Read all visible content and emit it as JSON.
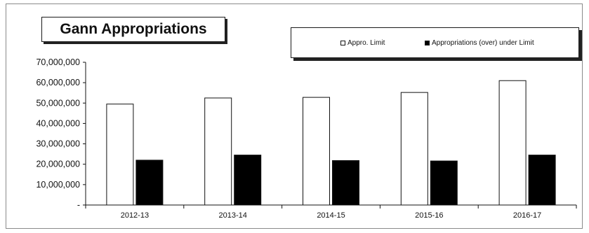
{
  "chart_data": {
    "type": "bar",
    "title": "Gann Appropriations",
    "categories": [
      "2012-13",
      "2013-14",
      "2014-15",
      "2015-16",
      "2016-17"
    ],
    "series": [
      {
        "name": "Appro. Limit",
        "color": "#ffffff",
        "values": [
          49500000,
          52500000,
          52800000,
          55200000,
          61000000
        ]
      },
      {
        "name": "Appropriations (over) under Limit",
        "color": "#000000",
        "values": [
          22000000,
          24500000,
          21800000,
          21600000,
          24500000
        ]
      }
    ],
    "y_ticks": [
      0,
      10000000,
      20000000,
      30000000,
      40000000,
      50000000,
      60000000,
      70000000
    ],
    "y_tick_labels": [
      "-",
      "10,000,000",
      "20,000,000",
      "30,000,000",
      "40,000,000",
      "50,000,000",
      "60,000,000",
      "70,000,000"
    ],
    "ylim": [
      0,
      70000000
    ],
    "xlabel": "",
    "ylabel": "",
    "legend_position": "top-right",
    "grid": false
  }
}
